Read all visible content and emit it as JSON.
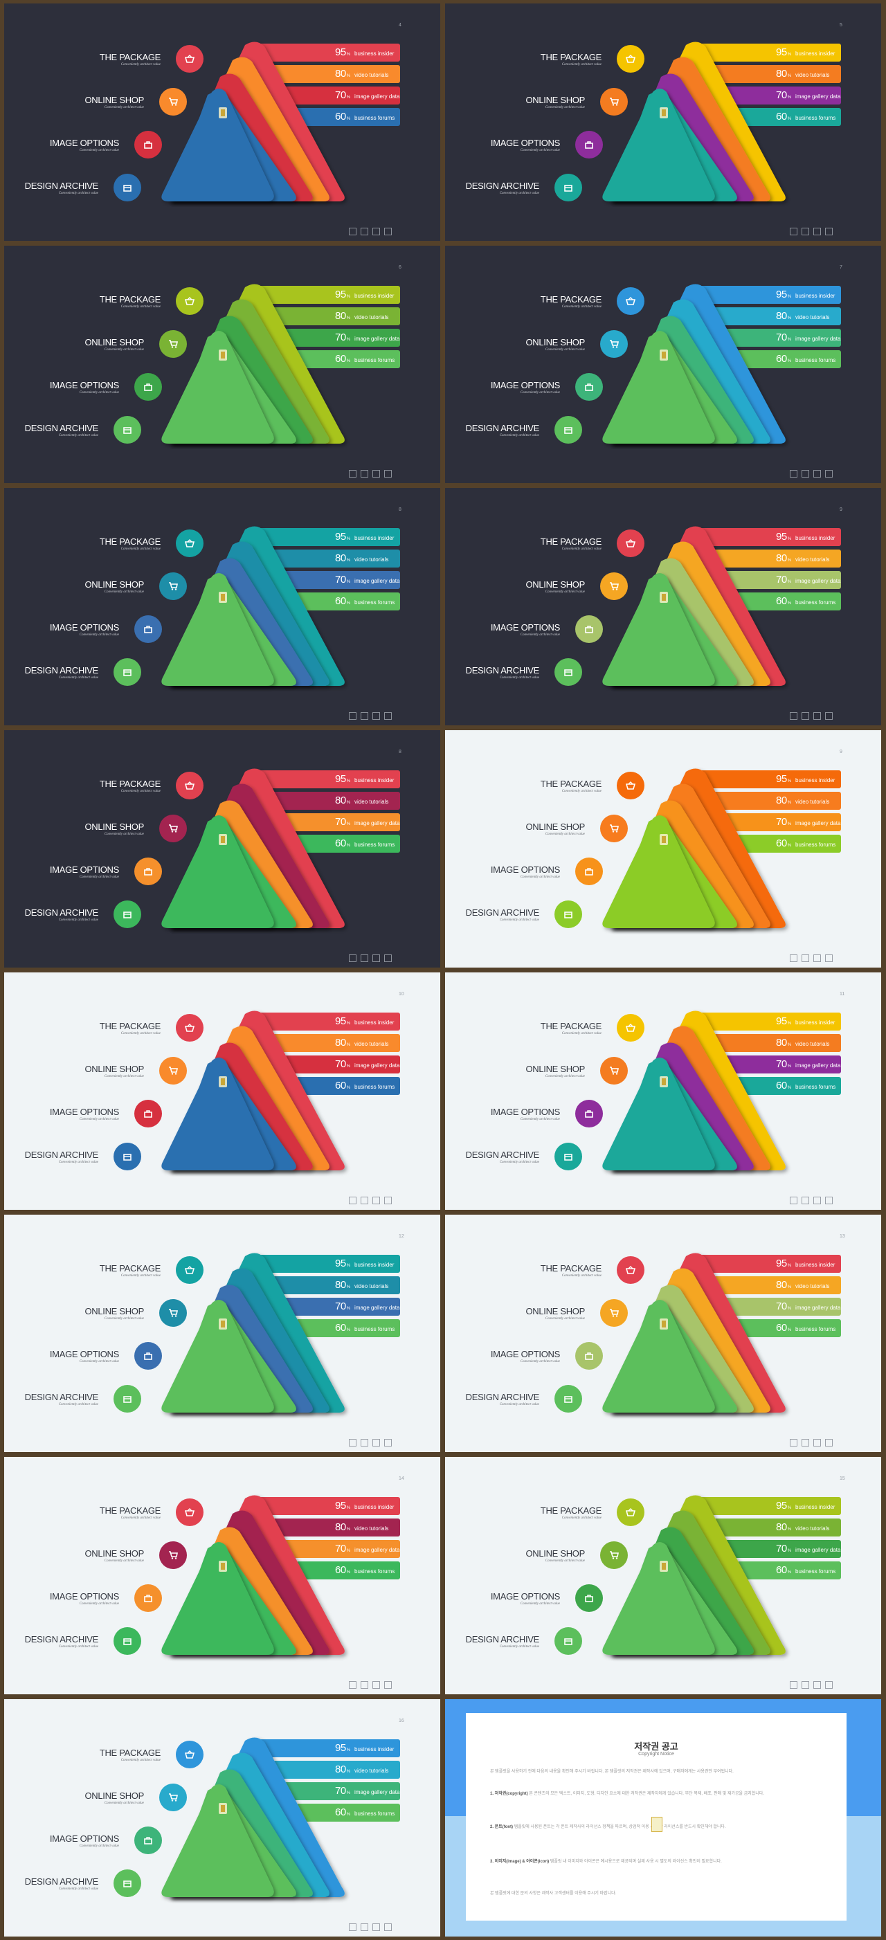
{
  "labels": {
    "package": "THE PACKAGE",
    "shop": "ONLINE SHOP",
    "options": "IMAGE OPTIONS",
    "archive": "DESIGN ARCHIVE",
    "subtitle": "Conveniently architect value"
  },
  "bars": [
    {
      "pct": "95",
      "unit": "%",
      "label": "business insider"
    },
    {
      "pct": "80",
      "unit": "%",
      "label": "video tutorials"
    },
    {
      "pct": "70",
      "unit": "%",
      "label": "image gallery data"
    },
    {
      "pct": "60",
      "unit": "%",
      "label": "business forums"
    }
  ],
  "slides": [
    {
      "page": "4",
      "theme": "dark",
      "colors": [
        "#e2414f",
        "#f98a2c",
        "#d6303f",
        "#2a6fb0"
      ],
      "tri": "#2a6fb0"
    },
    {
      "page": "5",
      "theme": "dark",
      "colors": [
        "#f5c400",
        "#f47c20",
        "#8e2d9c",
        "#1aa89a"
      ],
      "tri": "#1aa89a"
    },
    {
      "page": "6",
      "theme": "dark",
      "colors": [
        "#a8c41e",
        "#7ab334",
        "#3da64a",
        "#5cbf5c"
      ],
      "tri": "#5cbf5c"
    },
    {
      "page": "7",
      "theme": "dark",
      "colors": [
        "#2e95db",
        "#28aacc",
        "#3db47a",
        "#5cbf5c"
      ],
      "tri": "#5cbf5c"
    },
    {
      "page": "8",
      "theme": "dark",
      "colors": [
        "#14a3a3",
        "#1e8ea8",
        "#3a6fb0",
        "#5cbf5c"
      ],
      "tri": "#5cbf5c"
    },
    {
      "page": "9",
      "theme": "dark",
      "colors": [
        "#e2414f",
        "#f5a623",
        "#a8c46a",
        "#5cbf5c"
      ],
      "tri": "#5cbf5c"
    },
    {
      "page": "8",
      "theme": "dark",
      "colors": [
        "#e2414f",
        "#a32450",
        "#f5902c",
        "#3cb85c"
      ],
      "tri": "#3cb85c"
    },
    {
      "page": "9",
      "theme": "light",
      "colors": [
        "#f56a0a",
        "#f77c1e",
        "#f7921a",
        "#8ccc28"
      ],
      "tri": "#8ccc28"
    },
    {
      "page": "10",
      "theme": "light",
      "colors": [
        "#e2414f",
        "#f98a2c",
        "#d6303f",
        "#2a6fb0"
      ],
      "tri": "#2a6fb0"
    },
    {
      "page": "11",
      "theme": "light",
      "colors": [
        "#f5c400",
        "#f47c20",
        "#8e2d9c",
        "#1aa89a"
      ],
      "tri": "#1aa89a"
    },
    {
      "page": "12",
      "theme": "light",
      "colors": [
        "#14a3a3",
        "#1e8ea8",
        "#3a6fb0",
        "#5cbf5c"
      ],
      "tri": "#5cbf5c"
    },
    {
      "page": "13",
      "theme": "light",
      "colors": [
        "#e2414f",
        "#f5a623",
        "#a8c46a",
        "#5cbf5c"
      ],
      "tri": "#5cbf5c"
    },
    {
      "page": "14",
      "theme": "light",
      "colors": [
        "#e2414f",
        "#a32450",
        "#f5902c",
        "#3cb85c"
      ],
      "tri": "#3cb85c"
    },
    {
      "page": "15",
      "theme": "light",
      "colors": [
        "#a8c41e",
        "#7ab334",
        "#3da64a",
        "#5cbf5c"
      ],
      "tri": "#5cbf5c"
    },
    {
      "page": "16",
      "theme": "light",
      "colors": [
        "#2e95db",
        "#28aacc",
        "#3db47a",
        "#5cbf5c"
      ],
      "tri": "#5cbf5c"
    }
  ],
  "copyright": {
    "title": "저작권 공고",
    "subtitle": "Copyright Notice",
    "p1": "본 템플릿을 사용하기 전에 다음의 내용을 확인해 주시기 바랍니다. 본 템플릿의 저작권은 제작사에 있으며, 구매자에게는 사용권만 부여됩니다.",
    "p2_head": "1. 저작권(copyright)",
    "p2": " 본 콘텐츠의 모든 텍스트, 이미지, 도형, 디자인 요소에 대한 저작권은 제작자에게 있습니다. 무단 복제, 배포, 판매 및 재가공을 금지합니다.",
    "p3_head": "2. 폰트(font)",
    "p3": " 템플릿에 사용된 폰트는 각 폰트 제작사의 라이선스 정책을 따르며, 상업적 이용 시 해당 라이선스를 반드시 확인해야 합니다.",
    "p4_head": "3. 이미지(image) & 아이콘(icon)",
    "p4": " 템플릿 내 이미지와 아이콘은 예시용으로 제공되며 실제 사용 시 별도의 라이선스 확인이 필요합니다.",
    "p5": "본 템플릿에 대한 문의 사항은 제작사 고객센터를 이용해 주시기 바랍니다."
  }
}
